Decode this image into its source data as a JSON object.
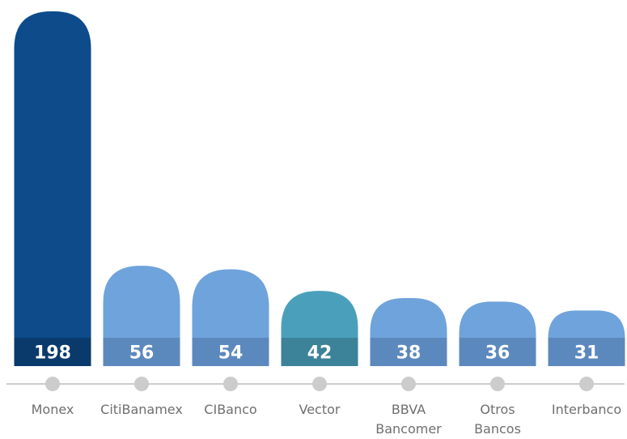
{
  "chart_data": {
    "type": "bar",
    "categories": [
      [
        "Monex"
      ],
      [
        "CitiBanamex"
      ],
      [
        "CIBanco"
      ],
      [
        "Vector"
      ],
      [
        "BBVA",
        "Bancomer"
      ],
      [
        "Otros",
        "Bancos"
      ],
      [
        "Interbanco"
      ]
    ],
    "values": [
      198,
      56,
      54,
      42,
      38,
      36,
      31
    ],
    "data_labels": [
      "198",
      "56",
      "54",
      "42",
      "38",
      "36",
      "31"
    ],
    "bar_colors": [
      "#0d4b8a",
      "#6fa3db",
      "#6fa3db",
      "#4aa0bb",
      "#6fa3db",
      "#6fa3db",
      "#6fa3db"
    ],
    "label_band_colors": [
      "#0a3a6c",
      "#5c89bd",
      "#5c89bd",
      "#3c8299",
      "#5c89bd",
      "#5c89bd",
      "#5c89bd"
    ],
    "data_label_color": "#ffffff",
    "axis_color": "#cccccc",
    "tick_dot_color": "#cccccc",
    "tick_label_color": "#6f6f6f",
    "ylim": [
      0,
      198
    ],
    "grid": false,
    "legend": "none"
  }
}
